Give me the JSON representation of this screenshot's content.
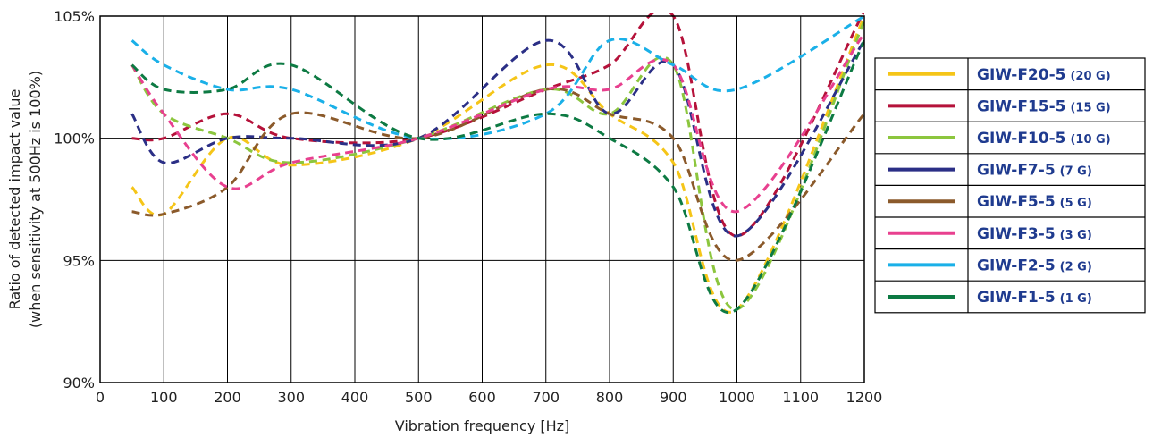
{
  "chart_data": {
    "type": "line",
    "title": "",
    "xlabel": "Vibration frequency [Hz]",
    "ylabel_lines": [
      "Ratio of detected impact value",
      "(when sensitivity at 500Hz is 100%)"
    ],
    "xlim": [
      0,
      1200
    ],
    "ylim": [
      90,
      105
    ],
    "x_ticks": [
      0,
      100,
      200,
      300,
      400,
      500,
      600,
      700,
      800,
      900,
      1000,
      1100,
      1200
    ],
    "x_tick_labels": [
      "0",
      "100",
      "200",
      "300",
      "400",
      "500",
      "600",
      "700",
      "800",
      "900",
      "1000",
      "1100",
      "1200"
    ],
    "y_ticks": [
      90,
      95,
      100,
      105
    ],
    "y_tick_labels": [
      "90%",
      "95%",
      "100%",
      "105%"
    ],
    "grid": true,
    "line_style": "dashed",
    "legend_placement": "right",
    "x": [
      50,
      100,
      200,
      300,
      500,
      700,
      800,
      900,
      1000,
      1200
    ],
    "series": [
      {
        "name": "GIW-F20-5",
        "g": "(20 G)",
        "color": "#f5c518",
        "values": [
          98.0,
          96.9,
          100.0,
          98.9,
          100.0,
          103.0,
          101.0,
          99.0,
          93.0,
          105.0
        ]
      },
      {
        "name": "GIW-F15-5",
        "g": "(15 G)",
        "color": "#b5123a",
        "values": [
          100.0,
          100.0,
          101.0,
          100.0,
          100.0,
          102.0,
          103.0,
          105.0,
          96.0,
          105.2
        ]
      },
      {
        "name": "GIW-F10-5",
        "g": "(10 G)",
        "color": "#8cc63e",
        "values": [
          103.0,
          101.0,
          100.0,
          99.0,
          100.0,
          102.0,
          101.0,
          103.0,
          93.0,
          104.8
        ]
      },
      {
        "name": "GIW-F7-5",
        "g": "(7 G)",
        "color": "#2b2f86",
        "values": [
          101.0,
          99.0,
          100.0,
          100.0,
          100.0,
          104.0,
          101.0,
          103.0,
          96.0,
          104.0
        ]
      },
      {
        "name": "GIW-F5-5",
        "g": "(5 G)",
        "color": "#8b5a2b",
        "values": [
          97.0,
          96.9,
          98.0,
          101.0,
          100.0,
          102.0,
          101.0,
          100.0,
          95.0,
          101.0
        ]
      },
      {
        "name": "GIW-F3-5",
        "g": "(3 G)",
        "color": "#e8408f",
        "values": [
          103.0,
          101.0,
          98.0,
          99.0,
          100.0,
          102.0,
          102.0,
          103.0,
          97.0,
          104.3
        ]
      },
      {
        "name": "GIW-F2-5",
        "g": "(2 G)",
        "color": "#1ab0e8",
        "values": [
          104.0,
          103.0,
          102.0,
          102.0,
          100.0,
          101.0,
          104.0,
          103.0,
          102.0,
          105.0
        ]
      },
      {
        "name": "GIW-F1-5",
        "g": "(1 G)",
        "color": "#0d7a43",
        "values": [
          103.0,
          102.0,
          102.0,
          103.0,
          100.0,
          101.0,
          100.0,
          98.0,
          93.0,
          104.0
        ]
      }
    ]
  }
}
